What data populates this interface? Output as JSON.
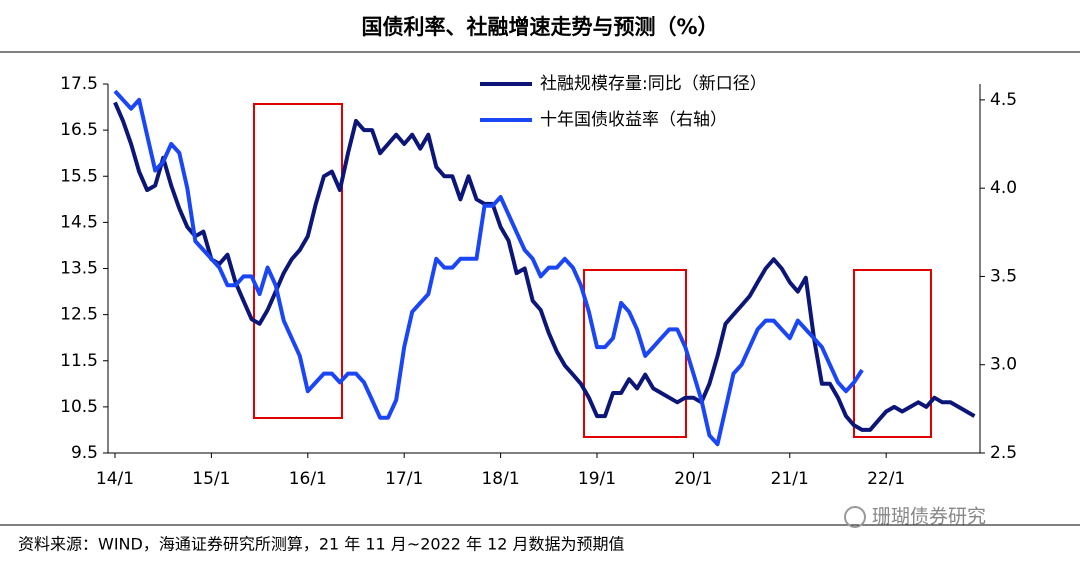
{
  "chart_data": {
    "type": "line",
    "title": "国债利率、社融增速走势与预测（%）",
    "source": "资料来源：WIND，海通证券研究所测算，21 年 11 月~2022 年 12 月数据为预期值",
    "watermark": "珊瑚债券研究",
    "categories": [
      "14/1",
      null,
      null,
      null,
      null,
      null,
      null,
      null,
      null,
      null,
      null,
      null,
      "15/1",
      null,
      null,
      null,
      null,
      null,
      null,
      null,
      null,
      null,
      null,
      null,
      "16/1",
      null,
      null,
      null,
      null,
      null,
      null,
      null,
      null,
      null,
      null,
      null,
      "17/1",
      null,
      null,
      null,
      null,
      null,
      null,
      null,
      null,
      null,
      null,
      null,
      "18/1",
      null,
      null,
      null,
      null,
      null,
      null,
      null,
      null,
      null,
      null,
      null,
      "19/1",
      null,
      null,
      null,
      null,
      null,
      null,
      null,
      null,
      null,
      null,
      null,
      "20/1",
      null,
      null,
      null,
      null,
      null,
      null,
      null,
      null,
      null,
      null,
      null,
      "21/1",
      null,
      null,
      null,
      null,
      null,
      null,
      null,
      null,
      null,
      null,
      null,
      "22/1",
      null,
      null,
      null,
      null,
      null,
      null,
      null,
      null,
      null,
      null,
      null
    ],
    "series": [
      {
        "name": "社融规模存量:同比（新口径）",
        "color": "#0c1678",
        "axis": "y",
        "values": [
          17.1,
          16.7,
          16.2,
          15.6,
          15.2,
          15.3,
          15.9,
          15.3,
          14.8,
          14.4,
          14.2,
          14.3,
          13.7,
          13.6,
          13.8,
          13.2,
          12.8,
          12.4,
          12.3,
          12.6,
          13.0,
          13.4,
          13.7,
          13.9,
          14.2,
          14.9,
          15.5,
          15.6,
          15.2,
          16.0,
          16.7,
          16.5,
          16.5,
          16.0,
          16.2,
          16.4,
          16.2,
          16.4,
          16.1,
          16.4,
          15.7,
          15.5,
          15.5,
          15.0,
          15.5,
          15.0,
          14.9,
          14.9,
          14.4,
          14.1,
          13.4,
          13.5,
          12.8,
          12.6,
          12.1,
          11.7,
          11.4,
          11.2,
          11.0,
          10.7,
          10.3,
          10.3,
          10.8,
          10.8,
          11.1,
          10.9,
          11.2,
          10.9,
          10.8,
          10.7,
          10.6,
          10.7,
          10.7,
          10.6,
          11.0,
          11.6,
          12.3,
          12.5,
          12.7,
          12.9,
          13.2,
          13.5,
          13.7,
          13.5,
          13.2,
          13.0,
          13.3,
          12.0,
          11.0,
          11.0,
          10.7,
          10.3,
          10.1,
          10.0,
          10.0,
          10.2,
          10.4,
          10.5,
          10.4,
          10.5,
          10.6,
          10.5,
          10.7,
          10.6,
          10.6,
          10.5,
          10.4,
          10.3
        ]
      },
      {
        "name": "十年国债收益率（右轴）",
        "color": "#1a46f5",
        "axis": "y2",
        "values": [
          4.55,
          4.5,
          4.45,
          4.5,
          4.3,
          4.1,
          4.15,
          4.25,
          4.2,
          4.0,
          3.7,
          3.65,
          3.6,
          3.55,
          3.45,
          3.45,
          3.5,
          3.5,
          3.4,
          3.55,
          3.45,
          3.25,
          3.15,
          3.05,
          2.85,
          2.9,
          2.95,
          2.95,
          2.9,
          2.95,
          2.95,
          2.9,
          2.8,
          2.7,
          2.7,
          2.8,
          3.1,
          3.3,
          3.35,
          3.4,
          3.6,
          3.55,
          3.55,
          3.6,
          3.6,
          3.6,
          3.9,
          3.9,
          3.95,
          3.85,
          3.75,
          3.65,
          3.6,
          3.5,
          3.55,
          3.55,
          3.6,
          3.55,
          3.45,
          3.3,
          3.1,
          3.1,
          3.15,
          3.35,
          3.3,
          3.2,
          3.05,
          3.1,
          3.15,
          3.2,
          3.2,
          3.1,
          2.95,
          2.8,
          2.6,
          2.55,
          2.75,
          2.95,
          3.0,
          3.1,
          3.2,
          3.25,
          3.25,
          3.2,
          3.15,
          3.25,
          3.2,
          3.15,
          3.1,
          3.0,
          2.9,
          2.85,
          2.9,
          2.97,
          null,
          null,
          null,
          null,
          null,
          null,
          null,
          null,
          null,
          null,
          null,
          null,
          null,
          null
        ]
      }
    ],
    "ylim": [
      9.5,
      17.5
    ],
    "yticks": [
      9.5,
      10.5,
      11.5,
      12.5,
      13.5,
      14.5,
      15.5,
      16.5,
      17.5
    ],
    "y2lim": [
      2.5,
      4.59
    ],
    "y2ticks": [
      2.5,
      {
        "value": 3,
        "label": "3.0"
      },
      3.5,
      {
        "value": 4,
        "label": "4.0"
      },
      4.5
    ],
    "grid": false
  }
}
